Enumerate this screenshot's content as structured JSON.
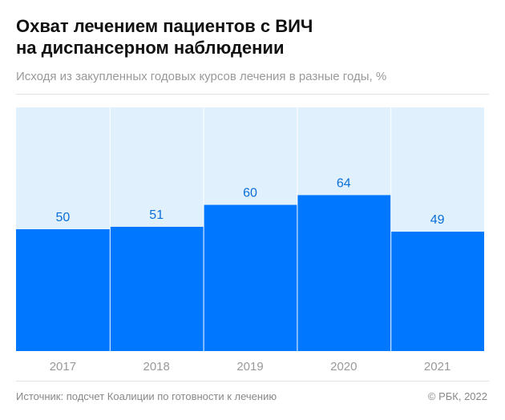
{
  "chart_data": {
    "type": "bar",
    "title": "Охват лечением пациентов с ВИЧ на диспансерном наблюдении",
    "title_lines": [
      "Охват лечением пациентов с ВИЧ",
      "на диспансерном наблюдении"
    ],
    "subtitle": "Исходя из закупленных годовых курсов лечения в разные годы, %",
    "categories": [
      "2017",
      "2018",
      "2019",
      "2020",
      "2021"
    ],
    "values": [
      50,
      51,
      60,
      64,
      49
    ],
    "ylim": [
      0,
      100
    ],
    "xlabel": "",
    "ylabel": "",
    "colors": {
      "bar": "#0077ff",
      "background": "#e1f0fd",
      "label": "#0a6fd6",
      "tick": "#999999"
    }
  },
  "footer": {
    "source": "Источник: подсчет Коалиции по готовности к лечению",
    "copyright": "© РБК, 2022"
  }
}
